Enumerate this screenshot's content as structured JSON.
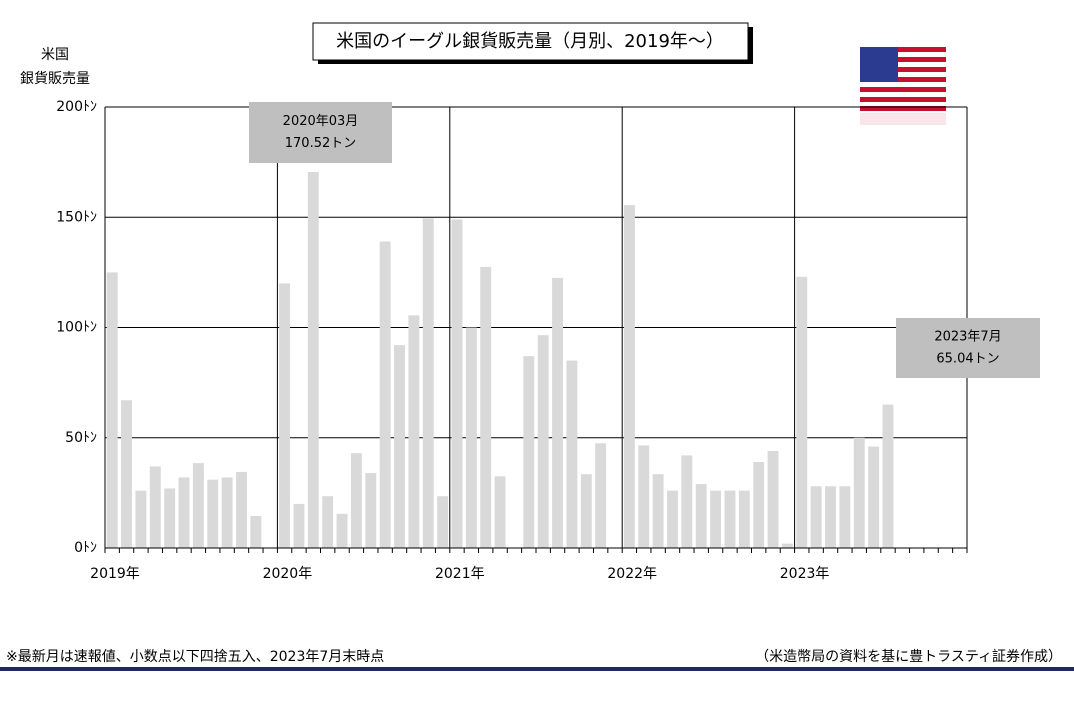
{
  "chart_data": {
    "type": "bar",
    "title": "米国のイーグル銀貨販売量（月別、2019年～）",
    "y_label": [
      "米国",
      "銀貨販売量"
    ],
    "categories": [
      "2019年",
      null,
      null,
      null,
      null,
      null,
      null,
      null,
      null,
      null,
      null,
      null,
      "2020年",
      null,
      null,
      null,
      null,
      null,
      null,
      null,
      null,
      null,
      null,
      null,
      "2021年",
      null,
      null,
      null,
      null,
      null,
      null,
      null,
      null,
      null,
      null,
      null,
      "2022年",
      null,
      null,
      null,
      null,
      null,
      null,
      null,
      null,
      null,
      null,
      null,
      "2023年",
      null,
      null,
      null,
      null,
      null,
      null,
      null,
      null,
      null,
      null,
      null
    ],
    "values": [
      125,
      67,
      26,
      37,
      27,
      32,
      38.5,
      31,
      32,
      34.5,
      14.5,
      0,
      120,
      20,
      170.52,
      23.5,
      15.5,
      43,
      34,
      139,
      92,
      105.5,
      149.5,
      23.5,
      149,
      100,
      127.5,
      32.5,
      0,
      87,
      96.5,
      122.5,
      85,
      33.5,
      47.5,
      0,
      155.5,
      46.5,
      33.5,
      26,
      42,
      29,
      26,
      26,
      26,
      39,
      44,
      2,
      123,
      28,
      28,
      28,
      50,
      46,
      65.04,
      null,
      null,
      null,
      null,
      null
    ],
    "color": "#d9d9d9",
    "ylim": [
      0,
      200
    ],
    "yticks": [
      {
        "value": 0,
        "label": "0ﾄﾝ"
      },
      {
        "value": 50,
        "label": "50ﾄﾝ"
      },
      {
        "value": 100,
        "label": "100ﾄﾝ"
      },
      {
        "value": 150,
        "label": "150ﾄﾝ"
      },
      {
        "value": 200,
        "label": "200ﾄﾝ"
      }
    ],
    "grid": true,
    "annotations": [
      {
        "lines": [
          "2020年03月",
          "170.52トン"
        ]
      },
      {
        "lines": [
          "2023年7月",
          "65.04トン"
        ]
      }
    ],
    "footnote": "※最新月は速報値、小数点以下四捨五入、2023年7月末時点",
    "source": "（米造幣局の資料を基に豊トラスティ証券作成）"
  }
}
